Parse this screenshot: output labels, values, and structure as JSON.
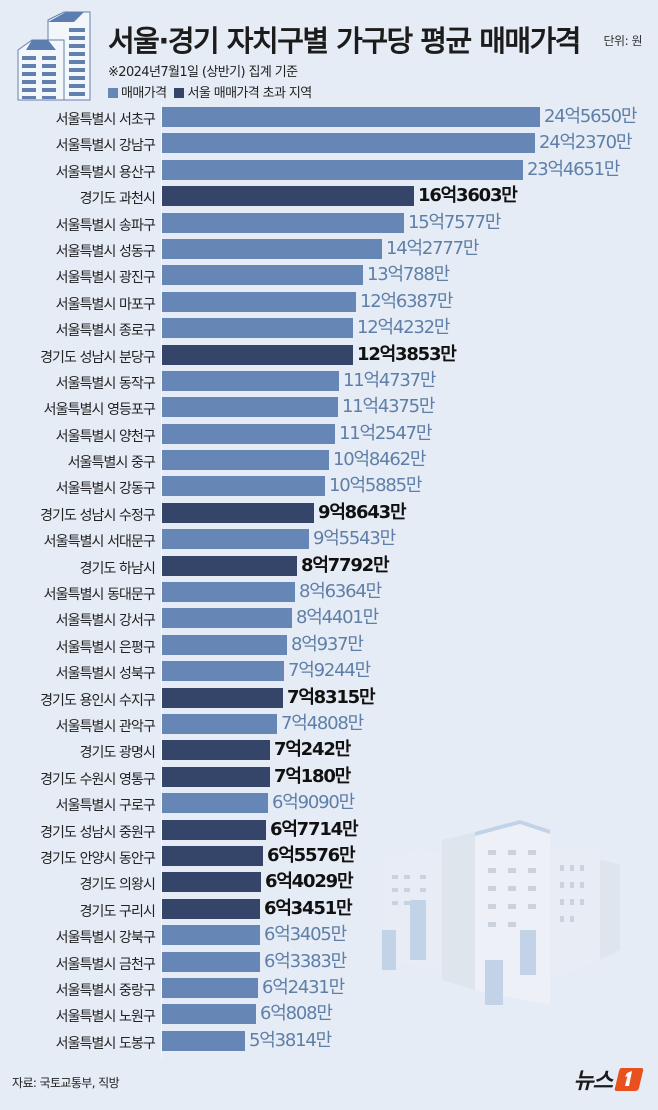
{
  "header": {
    "title": "서울·경기 자치구별 가구당 평균 매매가격",
    "unit": "단위: 원",
    "subtitle": "※2024년7월1일 (상반기) 집계 기준",
    "legend": [
      {
        "label": "매매가격",
        "color": "#6687b6"
      },
      {
        "label": "서울 매매가격 초과 지역",
        "color": "#344569"
      }
    ]
  },
  "footer": {
    "source": "자료: 국토교통부, 직방",
    "logo_text": "뉴스",
    "logo_mark": "1",
    "logo_color": "#e8501e"
  },
  "colors": {
    "background": "#e6ecf5",
    "seoul_bar": "#6687b6",
    "gyeonggi_bar": "#344569"
  },
  "chart_data": {
    "type": "bar",
    "orientation": "horizontal",
    "title": "서울·경기 자치구별 가구당 평균 매매가격",
    "subtitle": "※2024년7월1일 (상반기) 집계 기준",
    "unit": "원 (만원 단위 표기)",
    "legend": [
      "매매가격",
      "서울 매매가격 초과 지역"
    ],
    "grid": false,
    "categories": [
      "서울특별시 서초구",
      "서울특별시 강남구",
      "서울특별시 용산구",
      "경기도 과천시",
      "서울특별시 송파구",
      "서울특별시 성동구",
      "서울특별시 광진구",
      "서울특별시 마포구",
      "서울특별시 종로구",
      "경기도 성남시 분당구",
      "서울특별시 동작구",
      "서울특별시 영등포구",
      "서울특별시 양천구",
      "서울특별시 중구",
      "서울특별시 강동구",
      "경기도 성남시 수정구",
      "서울특별시 서대문구",
      "경기도 하남시",
      "서울특별시 동대문구",
      "서울특별시 강서구",
      "서울특별시 은평구",
      "서울특별시 성북구",
      "경기도 용인시 수지구",
      "서울특별시 관악구",
      "경기도 광명시",
      "경기도 수원시 영통구",
      "서울특별시 구로구",
      "경기도 성남시 중원구",
      "경기도 안양시 동안구",
      "경기도 의왕시",
      "경기도 구리시",
      "서울특별시 강북구",
      "서울특별시 금천구",
      "서울특별시 중랑구",
      "서울특별시 노원구",
      "서울특별시 도봉구"
    ],
    "values_manwon": [
      245650,
      242370,
      234651,
      163603,
      157577,
      142777,
      130788,
      126387,
      124232,
      123853,
      114737,
      114375,
      112547,
      108462,
      105885,
      98643,
      95543,
      87792,
      86364,
      84401,
      80937,
      79244,
      78315,
      74808,
      70242,
      70180,
      69090,
      67714,
      65576,
      64029,
      63451,
      63405,
      63383,
      62431,
      60808,
      53814
    ],
    "labels": [
      "24억5650만",
      "24억2370만",
      "23억4651만",
      "16억3603만",
      "15억7577만",
      "14억2777만",
      "13억788만",
      "12억6387만",
      "12억4232만",
      "12억3853만",
      "11억4737만",
      "11억4375만",
      "11억2547만",
      "10억8462만",
      "10억5885만",
      "9억8643만",
      "9억5543만",
      "8억7792만",
      "8억6364만",
      "8억4401만",
      "8억937만",
      "7억9244만",
      "7억8315만",
      "7억4808만",
      "7억242만",
      "7억180만",
      "6억9090만",
      "6억7714만",
      "6억5576만",
      "6억4029만",
      "6억3451만",
      "6억3405만",
      "6억3383만",
      "6억2431만",
      "6억808만",
      "5억3814만"
    ],
    "series_type": [
      "seoul",
      "seoul",
      "seoul",
      "gg",
      "seoul",
      "seoul",
      "seoul",
      "seoul",
      "seoul",
      "gg",
      "seoul",
      "seoul",
      "seoul",
      "seoul",
      "seoul",
      "gg",
      "seoul",
      "gg",
      "seoul",
      "seoul",
      "seoul",
      "seoul",
      "gg",
      "seoul",
      "gg",
      "gg",
      "seoul",
      "gg",
      "gg",
      "gg",
      "gg",
      "seoul",
      "seoul",
      "seoul",
      "seoul",
      "seoul"
    ],
    "xlim": [
      0,
      245650
    ]
  }
}
